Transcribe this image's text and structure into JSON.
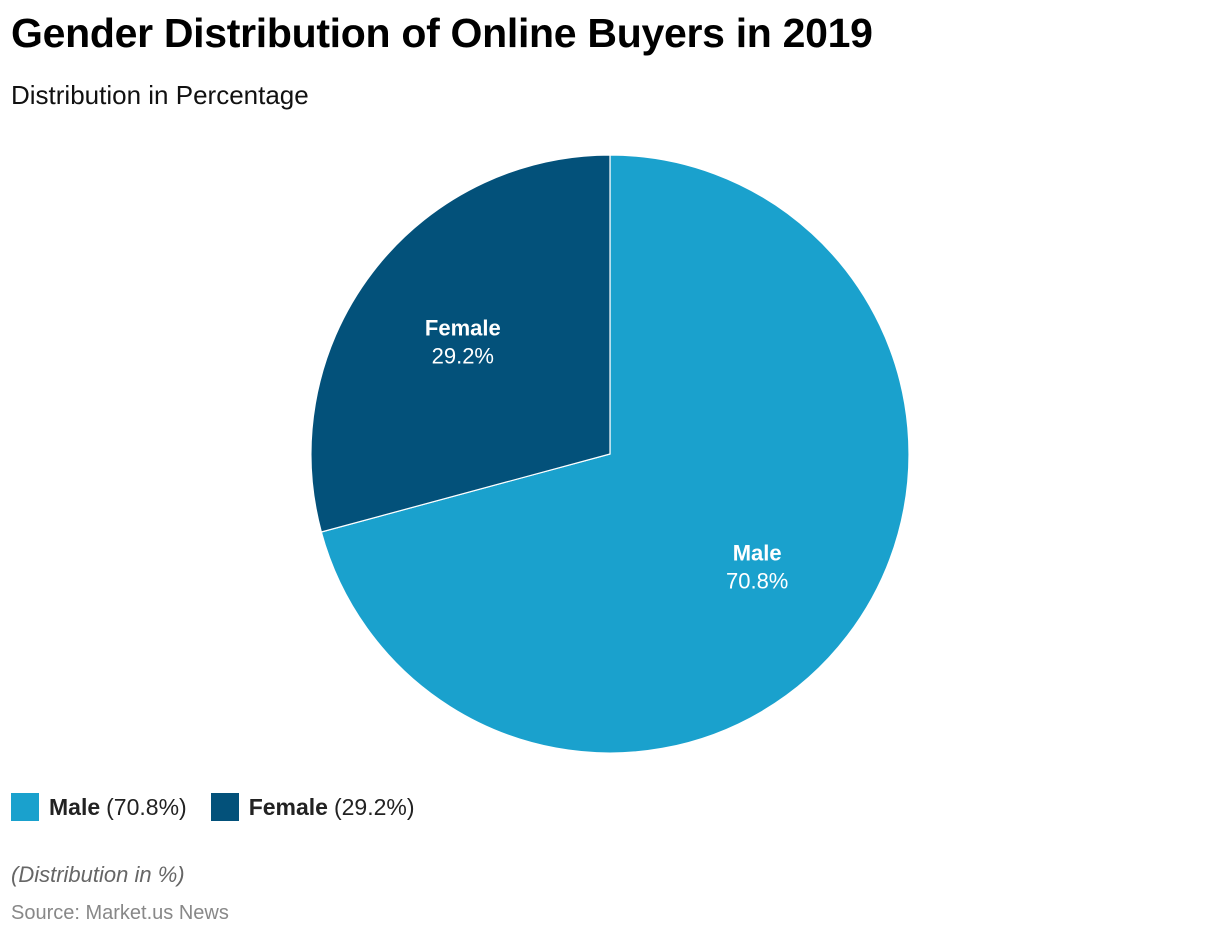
{
  "title": "Gender Distribution of Online Buyers in 2019",
  "subtitle": "Distribution in Percentage",
  "note": "(Distribution in %)",
  "source": "Source: Market.us News",
  "colors": {
    "male": "#1aa1cd",
    "female": "#03517a"
  },
  "chart_data": {
    "type": "pie",
    "title": "Gender Distribution of Online Buyers in 2019",
    "subtitle": "Distribution in Percentage",
    "slices": [
      {
        "label": "Male",
        "value": 70.8,
        "value_label": "70.8%",
        "legend_value": "(70.8%)",
        "color": "#1aa1cd"
      },
      {
        "label": "Female",
        "value": 29.2,
        "value_label": "29.2%",
        "legend_value": "(29.2%)",
        "color": "#03517a"
      }
    ],
    "legend_position": "bottom-left"
  }
}
